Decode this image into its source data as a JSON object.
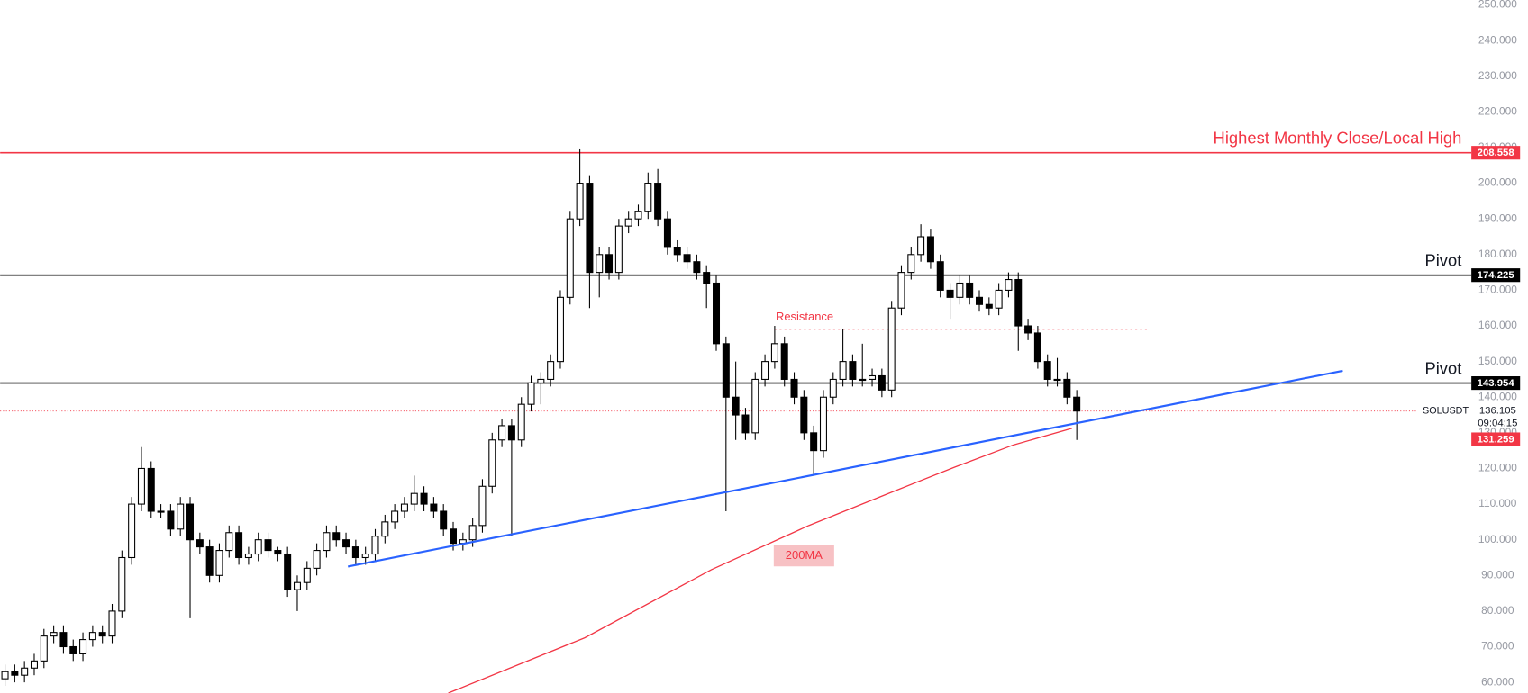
{
  "chart_data": {
    "type": "candlestick",
    "symbol": "SOLUSDT",
    "last_price": 136.105,
    "countdown": "09:04:15",
    "xlim": [
      -0.5,
      150
    ],
    "ylim": [
      57,
      251.4
    ],
    "yticks": [
      {
        "value": 60,
        "label": "60.000"
      },
      {
        "value": 70,
        "label": "70.000"
      },
      {
        "value": 80,
        "label": "80.000"
      },
      {
        "value": 90,
        "label": "90.000"
      },
      {
        "value": 100,
        "label": "100.000"
      },
      {
        "value": 110,
        "label": "110.000"
      },
      {
        "value": 120,
        "label": "120.000"
      },
      {
        "value": 130,
        "label": "130.000"
      },
      {
        "value": 140,
        "label": "140.000"
      },
      {
        "value": 150,
        "label": "150.000"
      },
      {
        "value": 160,
        "label": "160.000"
      },
      {
        "value": 170,
        "label": "170.000"
      },
      {
        "value": 180,
        "label": "180.000"
      },
      {
        "value": 190,
        "label": "190.000"
      },
      {
        "value": 200,
        "label": "200.000"
      },
      {
        "value": 210,
        "label": "210.000"
      },
      {
        "value": 220,
        "label": "220.000"
      },
      {
        "value": 230,
        "label": "230.000"
      },
      {
        "value": 240,
        "label": "240.000"
      },
      {
        "value": 250,
        "label": "250.000"
      }
    ],
    "up_color": "#ffffff",
    "down_color": "#000000",
    "candles": [
      [
        61,
        65,
        59,
        63
      ],
      [
        63,
        65,
        60,
        62
      ],
      [
        62,
        66,
        60,
        64
      ],
      [
        64,
        68,
        62,
        66
      ],
      [
        66,
        75,
        64,
        73
      ],
      [
        73,
        76,
        71,
        74
      ],
      [
        74,
        76,
        68,
        70
      ],
      [
        70,
        72,
        66,
        68
      ],
      [
        68,
        74,
        66,
        72
      ],
      [
        72,
        76,
        70,
        74
      ],
      [
        74,
        76,
        71,
        73
      ],
      [
        73,
        82,
        71,
        80
      ],
      [
        80,
        97,
        78,
        95
      ],
      [
        95,
        112,
        93,
        110
      ],
      [
        110,
        126,
        108,
        120
      ],
      [
        120,
        122,
        106,
        108
      ],
      [
        108,
        110,
        106,
        108
      ],
      [
        108,
        110,
        101,
        103
      ],
      [
        103,
        112,
        101,
        110
      ],
      [
        110,
        112,
        78,
        100
      ],
      [
        100,
        102,
        96,
        98
      ],
      [
        98,
        100,
        88,
        90
      ],
      [
        90,
        99,
        88,
        97
      ],
      [
        97,
        104,
        95,
        102
      ],
      [
        102,
        104,
        93,
        95
      ],
      [
        95,
        98,
        93,
        96
      ],
      [
        96,
        102,
        94,
        100
      ],
      [
        100,
        102,
        95,
        97
      ],
      [
        97,
        98,
        94,
        96
      ],
      [
        96,
        98,
        84,
        86
      ],
      [
        86,
        90,
        80,
        88
      ],
      [
        88,
        94,
        86,
        92
      ],
      [
        92,
        99,
        90,
        97
      ],
      [
        97,
        104,
        95,
        102
      ],
      [
        102,
        104,
        98,
        100
      ],
      [
        100,
        102,
        96,
        98
      ],
      [
        98,
        100,
        93,
        95
      ],
      [
        95,
        98,
        93,
        96
      ],
      [
        96,
        103,
        94,
        101
      ],
      [
        101,
        107,
        99,
        105
      ],
      [
        105,
        110,
        103,
        108
      ],
      [
        108,
        112,
        106,
        110
      ],
      [
        110,
        118,
        108,
        113
      ],
      [
        113,
        115,
        108,
        110
      ],
      [
        110,
        112,
        106,
        108
      ],
      [
        108,
        110,
        101,
        103
      ],
      [
        103,
        105,
        97,
        99
      ],
      [
        99,
        102,
        97,
        100
      ],
      [
        100,
        106,
        98,
        104
      ],
      [
        104,
        117,
        102,
        115
      ],
      [
        115,
        130,
        113,
        128
      ],
      [
        128,
        134,
        126,
        132
      ],
      [
        132,
        134,
        101,
        128
      ],
      [
        128,
        140,
        126,
        138
      ],
      [
        138,
        146,
        136,
        144
      ],
      [
        144,
        147,
        138,
        145
      ],
      [
        145,
        152,
        143,
        150
      ],
      [
        150,
        170,
        148,
        168
      ],
      [
        168,
        192,
        166,
        190
      ],
      [
        190,
        209.5,
        188,
        200
      ],
      [
        200,
        202,
        165,
        175
      ],
      [
        175,
        182,
        168,
        180
      ],
      [
        180,
        182,
        173,
        175
      ],
      [
        175,
        190,
        173,
        188
      ],
      [
        188,
        192,
        186,
        190
      ],
      [
        190,
        194,
        188,
        192
      ],
      [
        192,
        203,
        190,
        200
      ],
      [
        200,
        204,
        188,
        190
      ],
      [
        190,
        192,
        180,
        182
      ],
      [
        182,
        184,
        178,
        180
      ],
      [
        180,
        182,
        176,
        178
      ],
      [
        178,
        180,
        173,
        175
      ],
      [
        175,
        177,
        165,
        172
      ],
      [
        172,
        174,
        153,
        155
      ],
      [
        155,
        157,
        108,
        140
      ],
      [
        140,
        150,
        128,
        135
      ],
      [
        135,
        137,
        128,
        130
      ],
      [
        130,
        147,
        128,
        145
      ],
      [
        145,
        152,
        143,
        150
      ],
      [
        150,
        160,
        148,
        155
      ],
      [
        155,
        157,
        143,
        145
      ],
      [
        145,
        147,
        138,
        140
      ],
      [
        140,
        142,
        128,
        130
      ],
      [
        130,
        132,
        118,
        125
      ],
      [
        125,
        142,
        123,
        140
      ],
      [
        140,
        147,
        138,
        145
      ],
      [
        145,
        159,
        143,
        150
      ],
      [
        150,
        152,
        143,
        145
      ],
      [
        145,
        155,
        143,
        145
      ],
      [
        145,
        148,
        143,
        146
      ],
      [
        146,
        148,
        140,
        142
      ],
      [
        142,
        167,
        140,
        165
      ],
      [
        165,
        177,
        163,
        175
      ],
      [
        175,
        182,
        173,
        180
      ],
      [
        180,
        188.5,
        178,
        185
      ],
      [
        185,
        187,
        176,
        178
      ],
      [
        178,
        180,
        168,
        170
      ],
      [
        170,
        172,
        162,
        168
      ],
      [
        168,
        174,
        166,
        172
      ],
      [
        172,
        174,
        166,
        168
      ],
      [
        168,
        170,
        164,
        166
      ],
      [
        166,
        168,
        163,
        165
      ],
      [
        165,
        172,
        163,
        170
      ],
      [
        170,
        175,
        168,
        173
      ],
      [
        173,
        175,
        153,
        160
      ],
      [
        160,
        162,
        156,
        158
      ],
      [
        158,
        160,
        148,
        150
      ],
      [
        150,
        152,
        143,
        145
      ],
      [
        145,
        151,
        143,
        145
      ],
      [
        145,
        147,
        138,
        140
      ],
      [
        140,
        142,
        128,
        136.105
      ]
    ],
    "hlines": [
      {
        "value": 208.558,
        "color": "#f23645",
        "label": "Highest Monthly Close/Local High"
      },
      {
        "value": 174.225,
        "color": "#000000",
        "label": "Pivot"
      },
      {
        "value": 143.954,
        "color": "#000000",
        "label": "Pivot"
      }
    ],
    "resistance": {
      "label": "Resistance",
      "value": 159.1,
      "x": [
        79,
        117.2
      ],
      "color": "#f23645"
    },
    "trendline": {
      "x": [
        35.2,
        137.3
      ],
      "values": [
        92.5,
        147.4
      ],
      "color": "#2962ff"
    },
    "moving_average": {
      "name": "200MA",
      "color": "#f23645",
      "x": [
        45.5,
        59.5,
        72.5,
        82.5,
        90.5,
        97.5,
        103.5,
        109.5
      ],
      "values": [
        57,
        72.5,
        91.6,
        104,
        112.8,
        120.4,
        126.6,
        131.259
      ]
    }
  }
}
